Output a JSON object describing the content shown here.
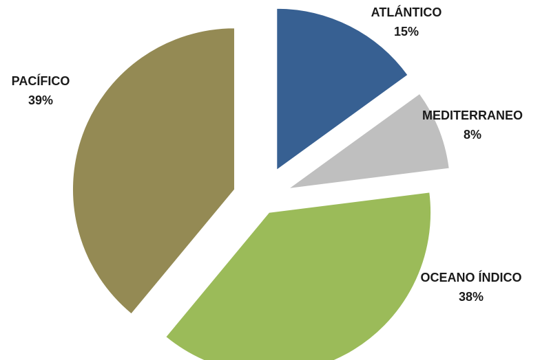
{
  "chart_data": {
    "type": "pie",
    "title": "",
    "slices": [
      {
        "label": "ATLÁNTICO",
        "value": 15,
        "display": "15%",
        "color": "#376092"
      },
      {
        "label": "MEDITERRANEO",
        "value": 8,
        "display": "8%",
        "color": "#bfbfbf"
      },
      {
        "label": "OCEANO ÍNDICO",
        "value": 38,
        "display": "38%",
        "color": "#9bbb59"
      },
      {
        "label": "PACÍFICO",
        "value": 39,
        "display": "39%",
        "color": "#948a54"
      }
    ],
    "exploded": true,
    "legend": "none"
  }
}
